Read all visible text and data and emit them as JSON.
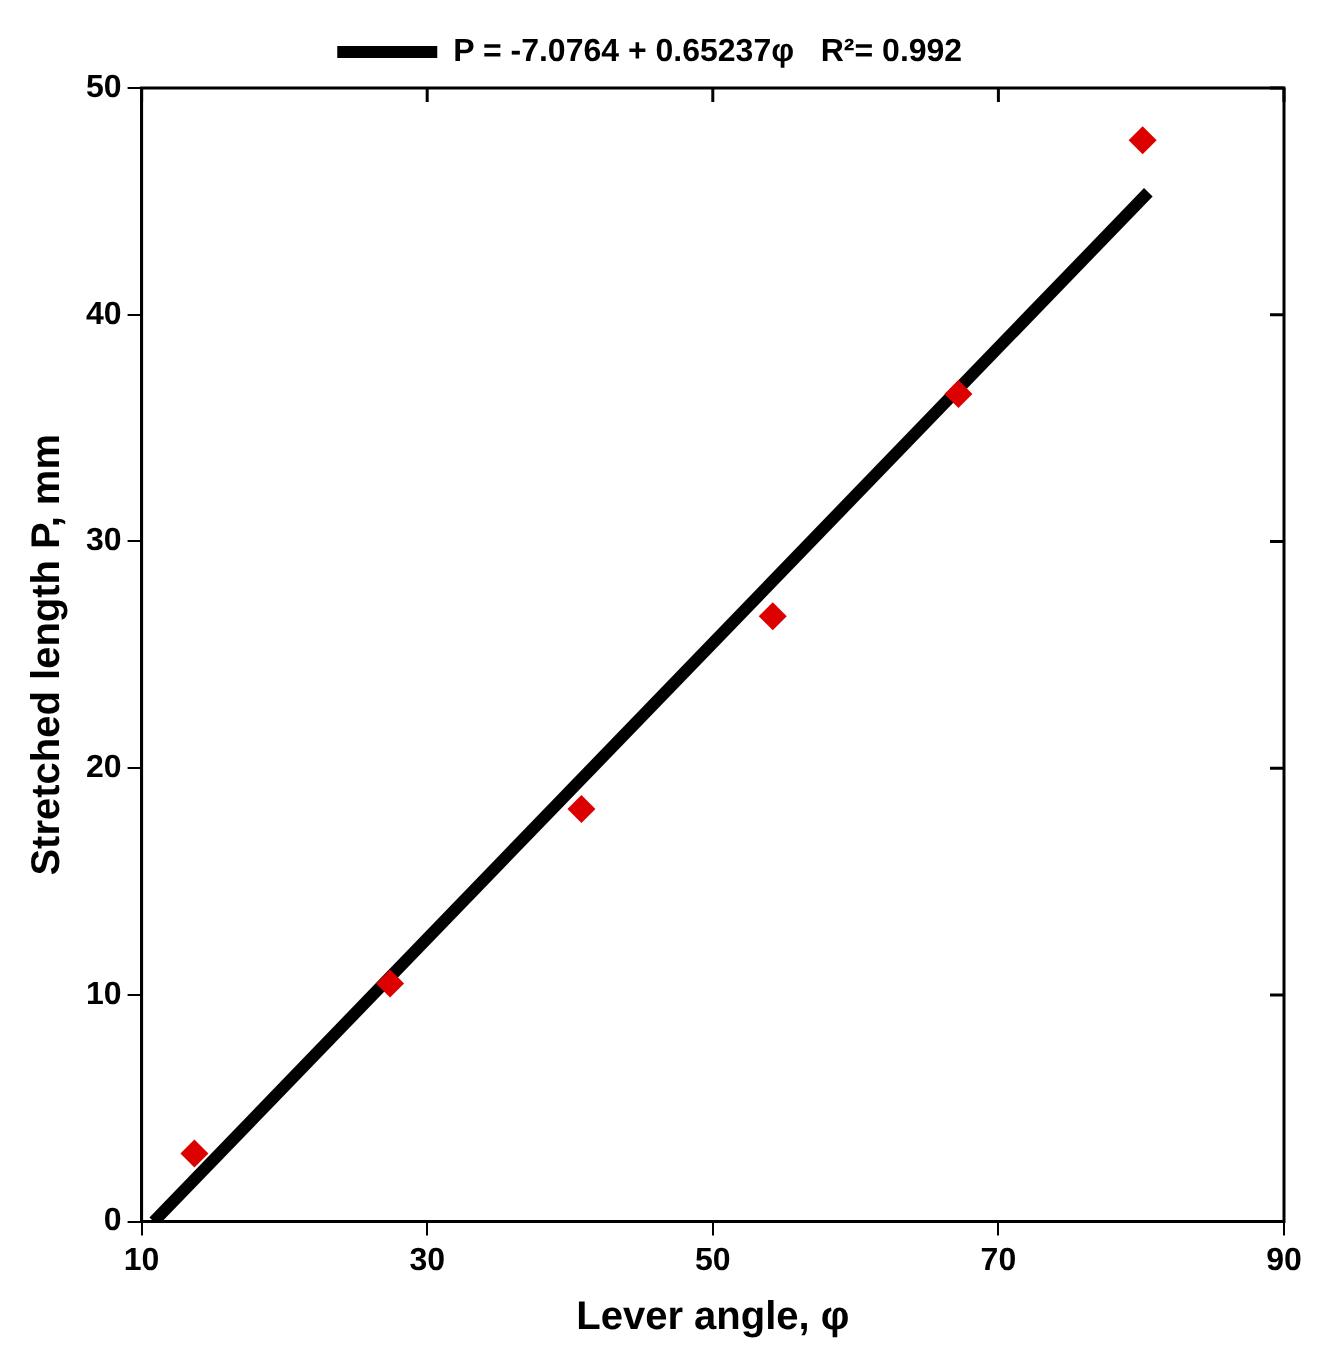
{
  "chart_data": {
    "type": "scatter",
    "xlabel": "Lever angle, φ",
    "ylabel": "Stretched length P, mm",
    "xlim": [
      10,
      90
    ],
    "xticks": [
      10,
      30,
      50,
      70,
      90
    ],
    "ylim": [
      0,
      50
    ],
    "yticks": [
      0,
      10,
      20,
      30,
      40,
      50
    ],
    "grid": false,
    "legend": "top",
    "series": [
      {
        "type": "scatter",
        "color": "#dd0000",
        "marker": "diamond",
        "x": [
          13.7,
          27.4,
          40.8,
          54.2,
          67.2,
          80.1
        ],
        "values": [
          3.0,
          10.5,
          18.2,
          26.7,
          36.5,
          47.7
        ]
      },
      {
        "type": "line",
        "name": "P = -7.0764 + 0.65237φ   R²= 0.992",
        "color": "#000000",
        "marker": "none",
        "line_style": "solid",
        "x": [
          10.85,
          80.5
        ],
        "values": [
          0,
          45.4
        ]
      }
    ]
  }
}
